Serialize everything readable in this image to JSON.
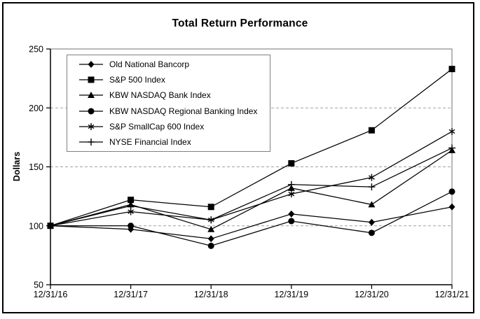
{
  "chart_data": {
    "type": "line",
    "title": "Total Return Performance",
    "ylabel": "Dollars",
    "xlabel": "",
    "ylim": [
      50,
      250
    ],
    "y_ticks": [
      50,
      100,
      150,
      200,
      250
    ],
    "grid": "horizontal dashed gridlines at 100, 150, 200",
    "legend_position": "upper-left inside plot area",
    "background_color": "#ffffff",
    "line_color": "#000000",
    "gridline_color": "#a0a0a0",
    "categories": [
      "12/31/16",
      "12/31/17",
      "12/31/18",
      "12/31/19",
      "12/31/20",
      "12/31/21"
    ],
    "series": [
      {
        "name": "Old National Bancorp",
        "marker": "diamond",
        "values": [
          100,
          97,
          89,
          110,
          103,
          116
        ]
      },
      {
        "name": "S&P 500 Index",
        "marker": "square",
        "values": [
          100,
          122,
          116,
          153,
          181,
          233
        ]
      },
      {
        "name": "KBW NASDAQ Bank Index",
        "marker": "triangle",
        "values": [
          100,
          118,
          97,
          132,
          118,
          164
        ]
      },
      {
        "name": "KBW NASDAQ Regional Banking Index",
        "marker": "circle",
        "values": [
          100,
          100,
          83,
          104,
          94,
          129
        ]
      },
      {
        "name": "S&P SmallCap 600 Index",
        "marker": "asterisk",
        "values": [
          100,
          112,
          105,
          127,
          141,
          180
        ]
      },
      {
        "name": "NYSE Financial Index",
        "marker": "plus",
        "values": [
          100,
          117,
          105,
          135,
          133,
          166
        ]
      }
    ]
  }
}
